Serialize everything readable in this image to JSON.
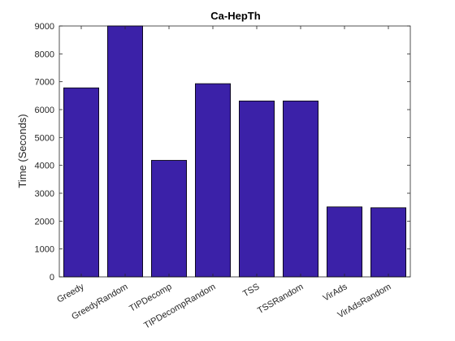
{
  "chart_data": {
    "type": "bar",
    "title": "Ca-HepTh",
    "xlabel": "",
    "ylabel": "Time (Seconds)",
    "ylim": [
      0,
      9000
    ],
    "yticks": [
      0,
      1000,
      2000,
      3000,
      4000,
      5000,
      6000,
      7000,
      8000,
      9000
    ],
    "categories": [
      "Greedy",
      "GreedyRandom",
      "TIPDecomp",
      "TIPDecompRandom",
      "TSS",
      "TSSRandom",
      "VirAds",
      "VirAdsRandom"
    ],
    "values": [
      6780,
      9000,
      4180,
      6930,
      6310,
      6310,
      2510,
      2480
    ],
    "grid": false,
    "bar_color": "#3b21a8"
  }
}
